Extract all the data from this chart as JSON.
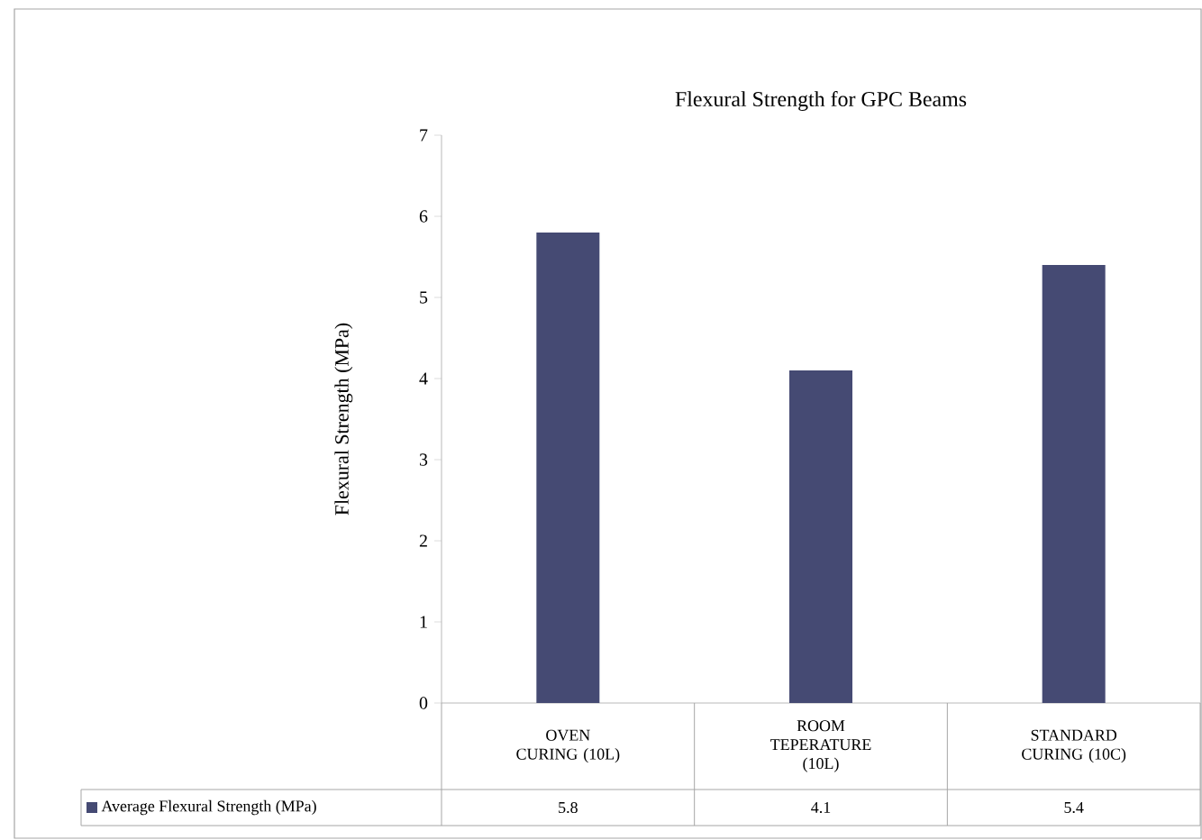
{
  "chart_data": {
    "type": "bar",
    "title": "Flexural Strength for GPC Beams",
    "ylabel": "Flexural Strength (MPa)",
    "categories": [
      "OVEN CURING (10L)",
      "ROOM TEPERATURE (10L)",
      "STANDARD CURING (10C)"
    ],
    "series": [
      {
        "name": "Average Flexural Strength (MPa)",
        "color": "#454a73",
        "values": [
          5.8,
          4.1,
          5.4
        ]
      }
    ],
    "ylim": [
      0,
      7
    ],
    "yticks": [
      0,
      1,
      2,
      3,
      4,
      5,
      6,
      7
    ],
    "data_labels": true,
    "legend": "bottom left"
  }
}
